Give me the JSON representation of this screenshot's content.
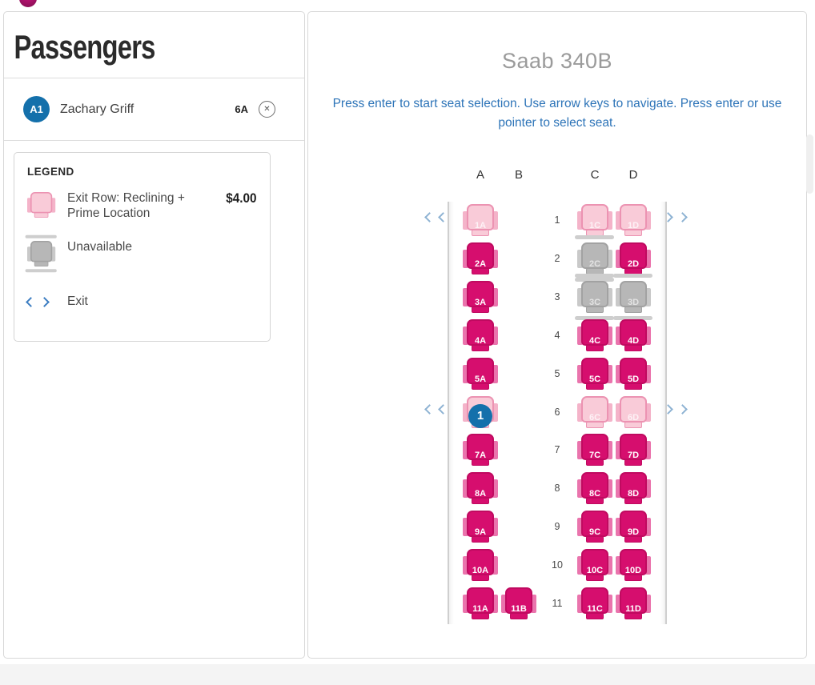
{
  "passengers_panel": {
    "title": "Passengers",
    "passenger": {
      "id": "A1",
      "name": "Zachary Griff",
      "seat": "6A"
    }
  },
  "legend": {
    "title": "LEGEND",
    "items": [
      {
        "type": "exit-row-seat",
        "label": "Exit Row: Reclining + Prime Location",
        "price": "$4.00"
      },
      {
        "type": "unavailable-seat",
        "label": "Unavailable"
      },
      {
        "type": "exit",
        "label": "Exit"
      }
    ]
  },
  "seat_map": {
    "aircraft": "Saab 340B",
    "instructions": "Press enter to start seat selection. Use arrow keys to navigate. Press enter or use pointer to select seat.",
    "columns": [
      "A",
      "B",
      "C",
      "D"
    ],
    "exit_rows": [
      1,
      6
    ],
    "rows": [
      {
        "number": "1",
        "seats": [
          {
            "id": "1A",
            "state": "exit-row"
          },
          {
            "id": "1C",
            "state": "exit-row"
          },
          {
            "id": "1D",
            "state": "exit-row"
          }
        ]
      },
      {
        "number": "2",
        "seats": [
          {
            "id": "2A",
            "state": "available"
          },
          {
            "id": "2C",
            "state": "unavailable"
          },
          {
            "id": "2D",
            "state": "available"
          }
        ]
      },
      {
        "number": "3",
        "seats": [
          {
            "id": "3A",
            "state": "available"
          },
          {
            "id": "3C",
            "state": "unavailable"
          },
          {
            "id": "3D",
            "state": "unavailable"
          }
        ]
      },
      {
        "number": "4",
        "seats": [
          {
            "id": "4A",
            "state": "available"
          },
          {
            "id": "4C",
            "state": "available"
          },
          {
            "id": "4D",
            "state": "available"
          }
        ]
      },
      {
        "number": "5",
        "seats": [
          {
            "id": "5A",
            "state": "available"
          },
          {
            "id": "5C",
            "state": "available"
          },
          {
            "id": "5D",
            "state": "available"
          }
        ]
      },
      {
        "number": "6",
        "seats": [
          {
            "id": "6A",
            "state": "exit-row",
            "badge": "1"
          },
          {
            "id": "6C",
            "state": "exit-row"
          },
          {
            "id": "6D",
            "state": "exit-row"
          }
        ]
      },
      {
        "number": "7",
        "seats": [
          {
            "id": "7A",
            "state": "available"
          },
          {
            "id": "7C",
            "state": "available"
          },
          {
            "id": "7D",
            "state": "available"
          }
        ]
      },
      {
        "number": "8",
        "seats": [
          {
            "id": "8A",
            "state": "available"
          },
          {
            "id": "8C",
            "state": "available"
          },
          {
            "id": "8D",
            "state": "available"
          }
        ]
      },
      {
        "number": "9",
        "seats": [
          {
            "id": "9A",
            "state": "available"
          },
          {
            "id": "9C",
            "state": "available"
          },
          {
            "id": "9D",
            "state": "available"
          }
        ]
      },
      {
        "number": "10",
        "seats": [
          {
            "id": "10A",
            "state": "available"
          },
          {
            "id": "10C",
            "state": "available"
          },
          {
            "id": "10D",
            "state": "available"
          }
        ]
      },
      {
        "number": "11",
        "seats": [
          {
            "id": "11A",
            "state": "available"
          },
          {
            "id": "11B",
            "state": "available"
          },
          {
            "id": "11C",
            "state": "available"
          },
          {
            "id": "11D",
            "state": "available"
          }
        ]
      }
    ]
  },
  "colors": {
    "available_seat": "#d60e6e",
    "exit_row_seat": "#f9cbd8",
    "unavailable_seat": "#b7b7b7",
    "selected_badge_blue": "#1470ab",
    "instruction_blue": "#2d74b8",
    "exit_chevron_blue": "#3d7ec2"
  }
}
